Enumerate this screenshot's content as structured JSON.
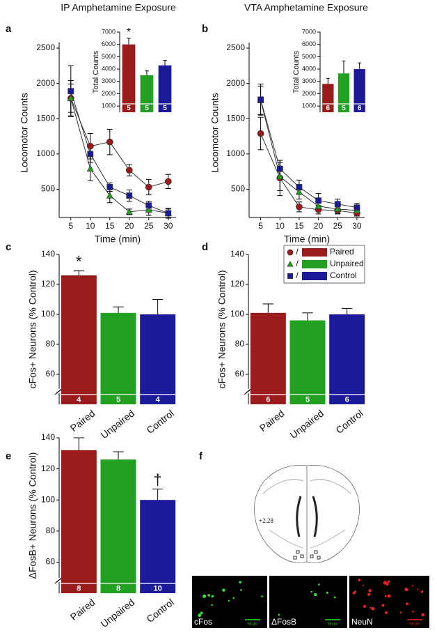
{
  "chart_data": [
    {
      "panel": "a",
      "type": "line",
      "title": "IP Amphetamine Exposure",
      "y_label": "Locomotor Counts",
      "x_label": "Time (min)",
      "x": [
        5,
        10,
        15,
        20,
        25,
        30
      ],
      "xlim": [
        2,
        32
      ],
      "xticks": [
        5,
        10,
        15,
        20,
        25,
        30
      ],
      "ylim": [
        100,
        2500
      ],
      "yticks": [
        500,
        1000,
        1500,
        2000,
        2500
      ],
      "series": [
        {
          "color": "#9b1b1b",
          "marker": "circle",
          "values": [
            1790,
            1110,
            1170,
            770,
            530,
            610
          ],
          "errors": [
            250,
            180,
            180,
            80,
            110,
            100
          ]
        },
        {
          "color": "#22a022",
          "marker": "triangle",
          "values": [
            1790,
            790,
            410,
            180,
            210,
            160
          ],
          "errors": [
            200,
            170,
            100,
            40,
            80,
            70
          ]
        },
        {
          "color": "#1a1a9b",
          "marker": "square",
          "values": [
            1890,
            1000,
            530,
            410,
            270,
            160
          ],
          "errors": [
            360,
            120,
            60,
            80,
            60,
            60
          ]
        }
      ],
      "inset": {
        "type": "bar",
        "y_label": "Total Counts",
        "ylim": [
          500,
          7000
        ],
        "yticks": [
          1000,
          2000,
          3000,
          4000,
          5000,
          6000,
          7000
        ],
        "values": [
          6000,
          3500,
          4300
        ],
        "errors": [
          500,
          350,
          400
        ],
        "colors": [
          "#9b1b1b",
          "#22a022",
          "#1a1a9b"
        ],
        "n_labels": [
          "5",
          "5",
          "5"
        ],
        "annotations": [
          "*",
          null,
          null
        ]
      }
    },
    {
      "panel": "b",
      "type": "line",
      "title": "VTA Amphetamine Exposure",
      "y_label": "Locomotor Counts",
      "x_label": "Time (min)",
      "x": [
        5,
        10,
        15,
        20,
        25,
        30
      ],
      "xlim": [
        2,
        32
      ],
      "xticks": [
        5,
        10,
        15,
        20,
        25,
        30
      ],
      "ylim": [
        100,
        2500
      ],
      "yticks": [
        500,
        1000,
        1500,
        2000,
        2500
      ],
      "series": [
        {
          "color": "#9b1b1b",
          "marker": "circle",
          "values": [
            1290,
            660,
            250,
            210,
            200,
            160
          ],
          "errors": [
            230,
            250,
            70,
            60,
            50,
            40
          ]
        },
        {
          "color": "#22a022",
          "marker": "triangle",
          "values": [
            1760,
            680,
            460,
            260,
            220,
            200
          ],
          "errors": [
            200,
            200,
            100,
            70,
            60,
            50
          ]
        },
        {
          "color": "#1a1a9b",
          "marker": "square",
          "values": [
            1770,
            790,
            530,
            340,
            290,
            240
          ],
          "errors": [
            220,
            120,
            100,
            100,
            70,
            60
          ]
        }
      ],
      "inset": {
        "type": "bar",
        "y_label": "Total Counts",
        "ylim": [
          500,
          7000
        ],
        "yticks": [
          1000,
          2000,
          3000,
          4000,
          5000,
          6000,
          7000
        ],
        "values": [
          2800,
          3650,
          4000
        ],
        "errors": [
          450,
          1000,
          500
        ],
        "colors": [
          "#9b1b1b",
          "#22a022",
          "#1a1a9b"
        ],
        "n_labels": [
          "6",
          "5",
          "6"
        ]
      }
    },
    {
      "panel": "c",
      "type": "bar",
      "y_label": "cFos+ Neurons (% Control)",
      "categories": [
        "Paired",
        "Unpaired",
        "Control"
      ],
      "ylim": [
        40,
        140
      ],
      "yticks": [
        60,
        80,
        100,
        120,
        140
      ],
      "values": [
        126,
        101,
        100
      ],
      "errors": [
        3,
        4,
        10
      ],
      "colors": [
        "#9b1b1b",
        "#22a022",
        "#1a1a9b"
      ],
      "n_labels": [
        "4",
        "5",
        "4"
      ],
      "annotations": [
        "*",
        null,
        null
      ]
    },
    {
      "panel": "d",
      "type": "bar",
      "y_label": "cFos+ Neurons (% Control)",
      "categories": [
        "Paired",
        "Unpaired",
        "Control"
      ],
      "ylim": [
        40,
        140
      ],
      "yticks": [
        60,
        80,
        100,
        120,
        140
      ],
      "values": [
        101,
        96,
        100
      ],
      "errors": [
        6,
        5,
        4
      ],
      "colors": [
        "#9b1b1b",
        "#22a022",
        "#1a1a9b"
      ],
      "n_labels": [
        "6",
        "5",
        "6"
      ],
      "legend": {
        "entries": [
          "Paired",
          "Unpaired",
          "Control"
        ],
        "markers": [
          "circle",
          "triangle",
          "square"
        ],
        "separator": "/"
      }
    },
    {
      "panel": "e",
      "type": "bar",
      "y_label": "ΔFosB+ Neurons (% Control)",
      "categories": [
        "Paired",
        "Unpaired",
        "Control"
      ],
      "ylim": [
        40,
        140
      ],
      "yticks": [
        60,
        80,
        100,
        120,
        140
      ],
      "values": [
        132,
        126,
        100
      ],
      "errors": [
        8,
        5,
        7
      ],
      "colors": [
        "#9b1b1b",
        "#22a022",
        "#1a1a9b"
      ],
      "n_labels": [
        "8",
        "8",
        "10"
      ],
      "annotations": [
        null,
        null,
        "†"
      ]
    }
  ],
  "figure_f": {
    "panel": "f",
    "brain_section": "+2.28",
    "images": [
      {
        "label": "cFos",
        "scale_bar": "50 μm",
        "color": "#33dd33"
      },
      {
        "label": "ΔFosB",
        "scale_bar": "50 μm",
        "color": "#33dd33"
      },
      {
        "label": "NeuN",
        "scale_bar": "50 μm",
        "color": "#ee2222"
      }
    ]
  }
}
